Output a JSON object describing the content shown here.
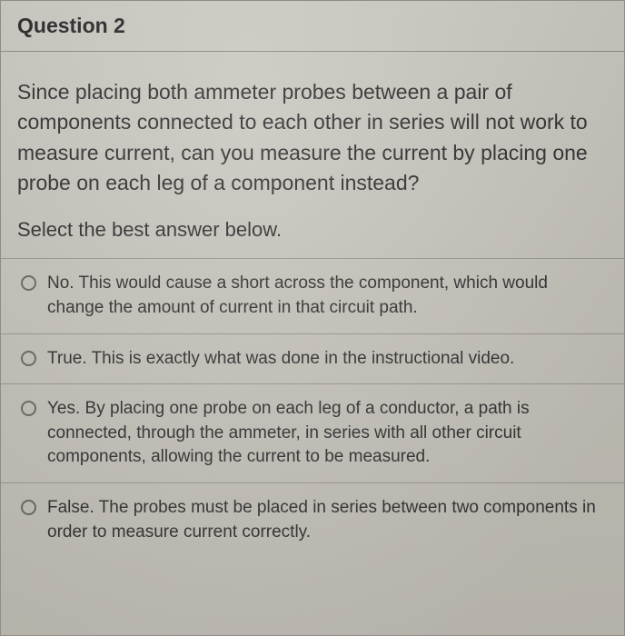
{
  "header": {
    "title": "Question 2"
  },
  "question": {
    "text": "Since placing both ammeter probes between a pair of components connected to each other in series will not work to measure current, can you measure the current by placing one probe on each leg of a component instead?",
    "instruction": "Select the best answer below."
  },
  "options": [
    {
      "text": "No. This would cause a short across the component, which would change the amount of current in that circuit path."
    },
    {
      "text": "True. This is exactly what was done in the instructional video."
    },
    {
      "text": "Yes. By placing one probe on each leg of a conductor, a path is connected, through the ammeter, in series with all other circuit components, allowing the current to be measured."
    },
    {
      "text": "False. The probes must be placed in series between two components in order to measure current correctly."
    }
  ],
  "style": {
    "card_bg_from": "#cdcac3",
    "card_bg_to": "#c0bdb5",
    "border_color": "#8e8c86",
    "divider_color": "#9a9892",
    "header_fontsize": 23,
    "question_fontsize": 23,
    "instruction_fontsize": 22,
    "option_fontsize": 19,
    "text_color": "#333333",
    "radio_border": "#6a6964"
  }
}
